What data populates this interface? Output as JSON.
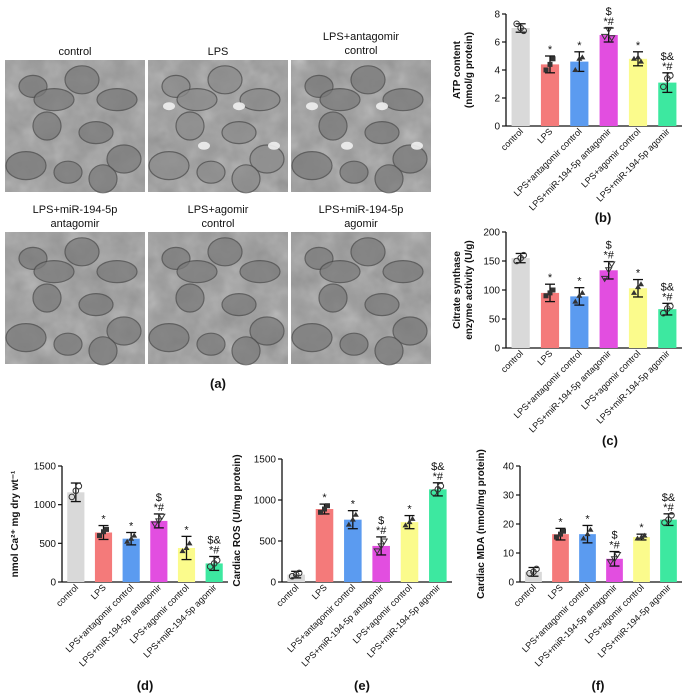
{
  "micrographs": {
    "titles": [
      "control",
      "LPS",
      "LPS+antagomir control",
      "LPS+miR-194-5p antagomir",
      "LPS+agomir control",
      "LPS+miR-194-5p agomir"
    ],
    "panel_label": "(a)"
  },
  "colors": [
    "#d9d9d9",
    "#f47a7a",
    "#5b9bf0",
    "#e24ee0",
    "#fbfb8c",
    "#3de8a0"
  ],
  "chart_data": [
    {
      "id": "b",
      "type": "bar",
      "panel_label": "(b)",
      "categories": [
        "control",
        "LPS",
        "LPS+antagomir control",
        "LPS+miR-194-5p antagomir",
        "LPS+agomir control",
        "LPS+miR-194-5p agomir"
      ],
      "values": [
        7.0,
        4.4,
        4.6,
        6.5,
        4.8,
        3.1
      ],
      "errors": [
        0.3,
        0.6,
        0.7,
        0.5,
        0.5,
        0.7
      ],
      "points": [
        [
          7.3,
          6.8,
          7.0
        ],
        [
          4.0,
          4.8,
          4.4
        ],
        [
          4.0,
          4.9,
          4.8
        ],
        [
          6.4,
          6.3,
          6.9
        ],
        [
          4.8,
          4.6,
          4.9
        ],
        [
          2.8,
          3.6,
          3.4
        ]
      ],
      "annotations": [
        "",
        "*",
        "*",
        "$\n*#",
        "*",
        "$&\n*#"
      ],
      "ylabel": "ATP content\n(nmol/g protein)",
      "ylim": [
        0,
        8
      ],
      "yticks": [
        0,
        2,
        4,
        6,
        8
      ]
    },
    {
      "id": "c",
      "type": "bar",
      "panel_label": "(c)",
      "categories": [
        "control",
        "LPS",
        "LPS+antagomir control",
        "LPS+miR-194-5p antagomir",
        "LPS+agomir control",
        "LPS+miR-194-5p agomir"
      ],
      "values": [
        155,
        95,
        89,
        134,
        103,
        67
      ],
      "errors": [
        8,
        15,
        15,
        15,
        15,
        10
      ],
      "points": [
        [
          150,
          160,
          155
        ],
        [
          90,
          100,
          95
        ],
        [
          80,
          95,
          90
        ],
        [
          120,
          145,
          135
        ],
        [
          95,
          110,
          105
        ],
        [
          60,
          72,
          68
        ]
      ],
      "annotations": [
        "",
        "*",
        "*",
        "$\n*#",
        "*",
        "$&\n*#"
      ],
      "ylabel": "Citrate synthase\nenzyme activity (U/g)",
      "ylim": [
        0,
        200
      ],
      "yticks": [
        0,
        50,
        100,
        150,
        200
      ]
    },
    {
      "id": "d",
      "type": "bar",
      "panel_label": "(d)",
      "categories": [
        "control",
        "LPS",
        "LPS+antagomir control",
        "LPS+miR-194-5p antagomir",
        "LPS+agomir control",
        "LPS+miR-194-5p agomir"
      ],
      "values": [
        1160,
        640,
        560,
        790,
        440,
        240
      ],
      "errors": [
        120,
        90,
        80,
        90,
        150,
        90
      ],
      "points": [
        [
          1100,
          1240,
          1180
        ],
        [
          600,
          680,
          650
        ],
        [
          520,
          600,
          560
        ],
        [
          750,
          850,
          790
        ],
        [
          400,
          500,
          440
        ],
        [
          200,
          280,
          240
        ]
      ],
      "annotations": [
        "",
        "*",
        "*",
        "$\n*#",
        "*",
        "$&\n*#"
      ],
      "ylabel": "nmol Ca²⁺ mg dry wt⁻¹",
      "ylim": [
        0,
        1500
      ],
      "yticks": [
        0,
        500,
        1000,
        1500
      ]
    },
    {
      "id": "e",
      "type": "bar",
      "panel_label": "(e)",
      "categories": [
        "control",
        "LPS",
        "LPS+antagomir control",
        "LPS+miR-194-5p antagomir",
        "LPS+agomir control",
        "LPS+miR-194-5p agomir"
      ],
      "values": [
        90,
        890,
        760,
        440,
        730,
        1130
      ],
      "errors": [
        40,
        60,
        110,
        110,
        80,
        80
      ],
      "points": [
        [
          70,
          110,
          90
        ],
        [
          850,
          930,
          890
        ],
        [
          700,
          820,
          760
        ],
        [
          380,
          500,
          440
        ],
        [
          690,
          770,
          730
        ],
        [
          1090,
          1170,
          1130
        ]
      ],
      "annotations": [
        "",
        "*",
        "*",
        "$\n*#",
        "*",
        "$&\n*#"
      ],
      "ylabel": "Cardiac ROS (U/mg protein)",
      "ylim": [
        0,
        1500
      ],
      "yticks": [
        0,
        500,
        1000,
        1500
      ]
    },
    {
      "id": "f",
      "type": "bar",
      "panel_label": "(f)",
      "categories": [
        "control",
        "LPS",
        "LPS+antagomir control",
        "LPS+miR-194-5p antagomir",
        "LPS+agomir control",
        "LPS+miR-194-5p agomir"
      ],
      "values": [
        3.5,
        16.5,
        16.5,
        8.0,
        15.5,
        21.5
      ],
      "errors": [
        1.5,
        2.0,
        3.0,
        2.5,
        1.0,
        2.0
      ],
      "points": [
        [
          3,
          4.5,
          3.5
        ],
        [
          15.5,
          17.5,
          16.5
        ],
        [
          15,
          18,
          16.5
        ],
        [
          7,
          9.5,
          8
        ],
        [
          15,
          16,
          15.5
        ],
        [
          20.5,
          23,
          21.5
        ]
      ],
      "annotations": [
        "",
        "*",
        "*",
        "$\n*#",
        "*",
        "$&\n*#"
      ],
      "ylabel": "Cardiac MDA (nmol/mg protein)",
      "ylim": [
        0,
        40
      ],
      "yticks": [
        0,
        10,
        20,
        30,
        40
      ]
    }
  ]
}
